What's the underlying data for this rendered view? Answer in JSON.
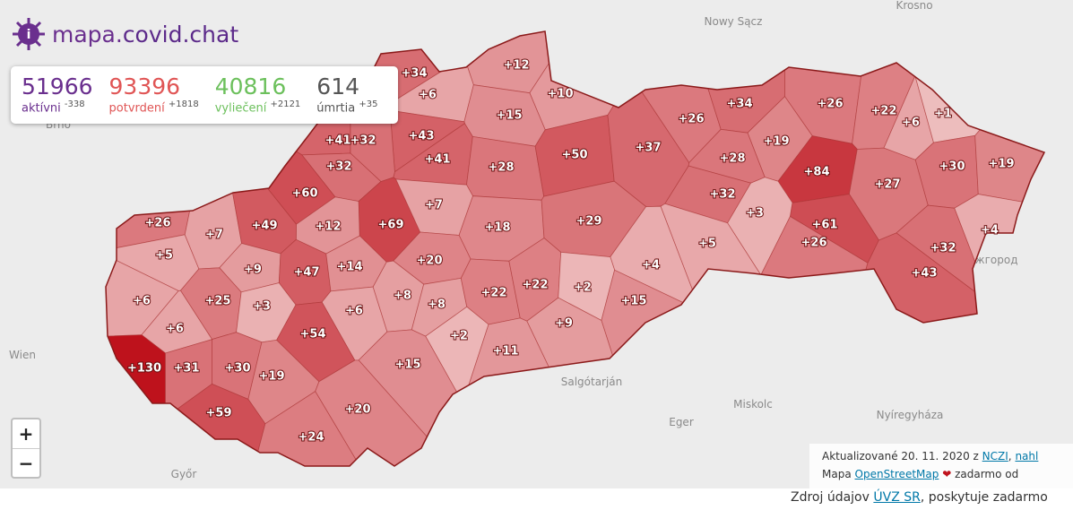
{
  "header": {
    "logo_prefix": "mapa.",
    "logo_suffix": "covid.chat"
  },
  "stats": [
    {
      "value": 51966,
      "label": "aktívni",
      "change": "-338"
    },
    {
      "value": 93396,
      "label": "potvrdení",
      "change": "+1818"
    },
    {
      "value": 40816,
      "label": "vyliečení",
      "change": "+2121"
    },
    {
      "value": 614,
      "label": "úmrtia",
      "change": "+35"
    }
  ],
  "districts": {
    "values": [
      12,
      10,
      34,
      6,
      15,
      43,
      41,
      41,
      32,
      32,
      28,
      50,
      37,
      26,
      34,
      26,
      22,
      6,
      1,
      19,
      28,
      84,
      30,
      19,
      27,
      60,
      12,
      69,
      7,
      18,
      29,
      32,
      3,
      61,
      26,
      4,
      32,
      43,
      26,
      5,
      7,
      49,
      9,
      47,
      14,
      20,
      5,
      4,
      6,
      25,
      3,
      6,
      8,
      8,
      22,
      22,
      2,
      15,
      6,
      54,
      2,
      9,
      11,
      130,
      31,
      30,
      19,
      15,
      20,
      59,
      24
    ],
    "value_labels": [
      "+12",
      "+10",
      "+34",
      "+6",
      "+15",
      "+43",
      "+41",
      "+41",
      "+32",
      "+32",
      "+28",
      "+50",
      "+37",
      "+26",
      "+34",
      "+26",
      "+22",
      "+6",
      "+1",
      "+19",
      "+28",
      "+84",
      "+30",
      "+19",
      "+27",
      "+60",
      "+12",
      "+69",
      "+7",
      "+18",
      "+29",
      "+32",
      "+3",
      "+61",
      "+26",
      "+4",
      "+32",
      "+43",
      "+26",
      "+5",
      "+7",
      "+49",
      "+9",
      "+47",
      "+14",
      "+20",
      "+5",
      "+4",
      "+6",
      "+25",
      "+3",
      "+6",
      "+8",
      "+8",
      "+22",
      "+22",
      "+2",
      "+15",
      "+6",
      "+54",
      "+2",
      "+9",
      "+11",
      "+130",
      "+31",
      "+30",
      "+19",
      "+15",
      "+20",
      "+59",
      "+24"
    ]
  },
  "places": [
    "Nowy Sącz",
    "Krosno",
    "Brno",
    "Wien",
    "Salgótarján",
    "Miskolc",
    "Eger",
    "Nyíregyháza",
    "Győr",
    "Ужгород"
  ],
  "zoom": {
    "in": "+",
    "out": "−"
  },
  "attribution": {
    "updated": "Aktualizované 20. 11. 2020 z",
    "source1": "NCZI",
    "sep": ",",
    "source2": "nahl",
    "map": "Mapa",
    "osm": "OpenStreetMap",
    "free": "zadarmo od"
  },
  "footer": {
    "prefix": "Zdroj údajov",
    "link": "ÚVZ SR",
    "suffix": ", poskytuje zadarmo"
  }
}
